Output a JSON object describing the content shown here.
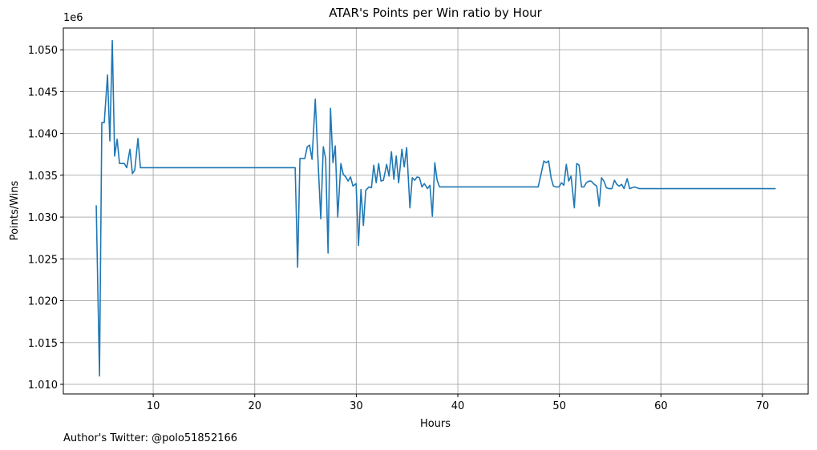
{
  "chart_data": {
    "type": "line",
    "title": "ATAR's Points per Win ratio by Hour",
    "x_label": "Hours",
    "y_label": "Points/Wins",
    "y_offset_label": "1e6",
    "footnote": "Author's Twitter: @polo51852166",
    "color": "#1f77b4",
    "grid": true,
    "xlim": [
      1.15,
      74.5
    ],
    "ylim": [
      1.00885,
      1.0526
    ],
    "xticks": [
      10,
      20,
      30,
      40,
      50,
      60,
      70
    ],
    "yticks": [
      {
        "value": 1.01,
        "label": "1.010"
      },
      {
        "value": 1.015,
        "label": "1.015"
      },
      {
        "value": 1.02,
        "label": "1.020"
      },
      {
        "value": 1.025,
        "label": "1.025"
      },
      {
        "value": 1.03,
        "label": "1.030"
      },
      {
        "value": 1.035,
        "label": "1.035"
      },
      {
        "value": 1.04,
        "label": "1.040"
      },
      {
        "value": 1.045,
        "label": "1.045"
      },
      {
        "value": 1.05,
        "label": "1.050"
      }
    ],
    "x": [
      4.39,
      4.71,
      4.94,
      5.18,
      5.5,
      5.73,
      5.97,
      6.2,
      6.45,
      6.68,
      6.92,
      7.16,
      7.39,
      7.71,
      7.95,
      8.18,
      8.5,
      8.74,
      23.98,
      24.22,
      24.45,
      24.69,
      24.93,
      25.17,
      25.4,
      25.64,
      25.96,
      26.19,
      26.5,
      26.75,
      26.98,
      27.22,
      27.46,
      27.7,
      27.93,
      28.17,
      28.48,
      28.72,
      28.96,
      29.19,
      29.43,
      29.67,
      29.98,
      30.22,
      30.46,
      30.7,
      30.93,
      31.25,
      31.49,
      31.72,
      31.96,
      32.2,
      32.43,
      32.67,
      32.99,
      33.22,
      33.46,
      33.7,
      33.93,
      34.17,
      34.49,
      34.72,
      34.96,
      35.28,
      35.51,
      35.75,
      35.99,
      36.22,
      36.46,
      36.7,
      37.01,
      37.25,
      37.49,
      37.73,
      37.96,
      38.2,
      47.91,
      48.15,
      48.47,
      48.7,
      48.94,
      49.18,
      49.41,
      49.65,
      49.97,
      50.2,
      50.44,
      50.68,
      50.92,
      51.15,
      51.47,
      51.71,
      51.94,
      52.18,
      52.42,
      52.65,
      52.89,
      53.13,
      53.44,
      53.68,
      53.92,
      54.15,
      54.39,
      54.63,
      54.87,
      55.18,
      55.42,
      55.66,
      55.89,
      56.13,
      56.37,
      56.68,
      56.92,
      57.16,
      57.39,
      57.63,
      57.87,
      71.3
    ],
    "values": [
      1.0314,
      1.011,
      1.0413,
      1.0413,
      1.047,
      1.0391,
      1.0511,
      1.0373,
      1.0393,
      1.0364,
      1.0364,
      1.0364,
      1.0359,
      1.0381,
      1.0352,
      1.0356,
      1.0394,
      1.0359,
      1.0359,
      1.024,
      1.037,
      1.037,
      1.037,
      1.0384,
      1.0386,
      1.0369,
      1.0441,
      1.0378,
      1.0298,
      1.0384,
      1.037,
      1.0257,
      1.043,
      1.0365,
      1.0385,
      1.03,
      1.0364,
      1.0351,
      1.0348,
      1.0343,
      1.0348,
      1.0337,
      1.034,
      1.0266,
      1.0333,
      1.029,
      1.0332,
      1.0336,
      1.0335,
      1.0362,
      1.0341,
      1.0364,
      1.0343,
      1.0344,
      1.0363,
      1.0349,
      1.0378,
      1.0345,
      1.0373,
      1.0341,
      1.0381,
      1.036,
      1.0383,
      1.0311,
      1.0347,
      1.0344,
      1.0348,
      1.0347,
      1.0336,
      1.034,
      1.0334,
      1.0338,
      1.0301,
      1.0365,
      1.0344,
      1.0336,
      1.0336,
      1.0349,
      1.0367,
      1.0365,
      1.0367,
      1.0347,
      1.0337,
      1.0336,
      1.0336,
      1.0341,
      1.0338,
      1.0363,
      1.0343,
      1.0349,
      1.0311,
      1.0364,
      1.0362,
      1.0336,
      1.0336,
      1.0341,
      1.0343,
      1.0343,
      1.0339,
      1.0337,
      1.0313,
      1.0347,
      1.0343,
      1.0335,
      1.0334,
      1.0334,
      1.0344,
      1.0339,
      1.0337,
      1.0339,
      1.0334,
      1.0346,
      1.0334,
      1.0335,
      1.0336,
      1.0335,
      1.0334,
      1.0334
    ]
  }
}
